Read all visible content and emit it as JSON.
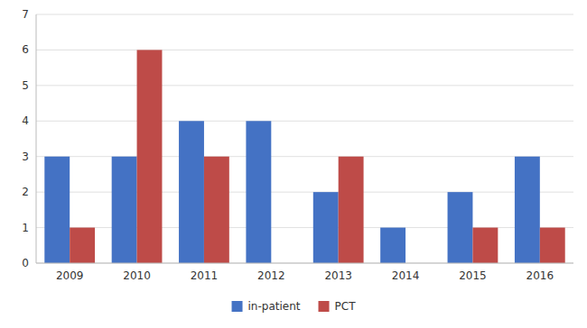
{
  "chart_data": {
    "type": "bar",
    "categories": [
      "2009",
      "2010",
      "2011",
      "2012",
      "2013",
      "2014",
      "2015",
      "2016"
    ],
    "series": [
      {
        "name": "in-patient",
        "color": "#4472C4",
        "values": [
          3,
          3,
          4,
          4,
          2,
          1,
          2,
          3
        ]
      },
      {
        "name": "PCT",
        "color": "#BE4B48",
        "values": [
          1,
          6,
          3,
          0,
          3,
          0,
          1,
          1
        ]
      }
    ],
    "ylim": [
      0,
      7
    ],
    "yticks": [
      0,
      1,
      2,
      3,
      4,
      5,
      6,
      7
    ],
    "grid": true,
    "legend": "bottom"
  }
}
